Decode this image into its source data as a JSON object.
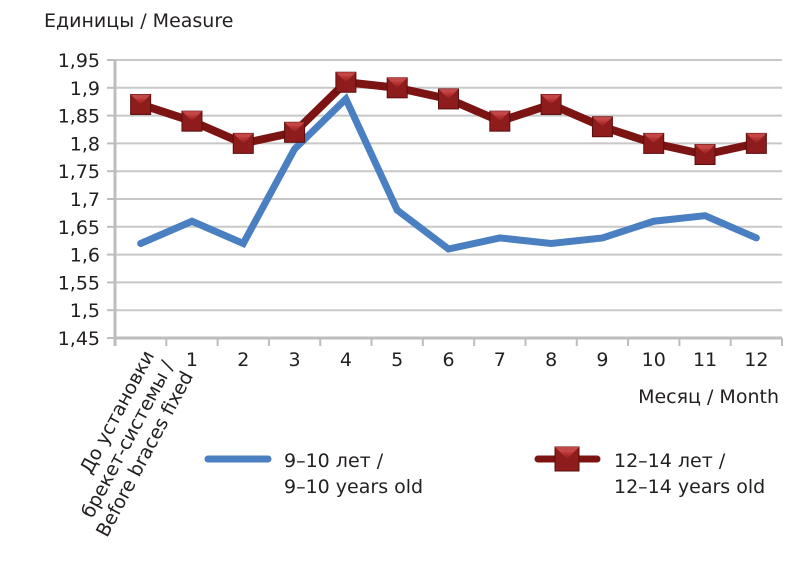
{
  "chart_data": {
    "type": "line",
    "title": "Единицы / Measure",
    "ylabel": "Единицы / Measure",
    "xlabel": "Месяц / Month",
    "ylim": [
      1.45,
      1.95
    ],
    "ytick_step": 0.05,
    "yticks": [
      "1,45",
      "1,5",
      "1,55",
      "1,6",
      "1,65",
      "1,7",
      "1,75",
      "1,8",
      "1,85",
      "1,9",
      "1,95"
    ],
    "grid": true,
    "categories": [
      "До установки брекет-системы / Before braces fixed",
      "1",
      "2",
      "3",
      "4",
      "5",
      "6",
      "7",
      "8",
      "9",
      "10",
      "11",
      "12"
    ],
    "first_category_lines": [
      "До установки",
      "брекет-системы /",
      "Before braces fixed"
    ],
    "legend_position": "bottom",
    "series": [
      {
        "name": "9–10 лет / 9–10 years old",
        "legend_lines": [
          "9–10 лет /",
          "9–10 years old"
        ],
        "color": "#4a7fc1",
        "marker": "none",
        "values": [
          1.62,
          1.66,
          1.62,
          1.79,
          1.88,
          1.68,
          1.61,
          1.63,
          1.62,
          1.63,
          1.66,
          1.67,
          1.63
        ]
      },
      {
        "name": "12–14 лет / 12–14 years old",
        "legend_lines": [
          "12–14 лет /",
          "12–14 years old"
        ],
        "color": "#7c1414",
        "marker_color": "#8e1c1c",
        "marker": "square",
        "values": [
          1.87,
          1.84,
          1.8,
          1.82,
          1.91,
          1.9,
          1.88,
          1.84,
          1.87,
          1.83,
          1.8,
          1.78,
          1.8
        ]
      }
    ]
  },
  "colors": {
    "grid": "#c8c8c8",
    "axis": "#bdbdbd",
    "text": "#231f20"
  }
}
